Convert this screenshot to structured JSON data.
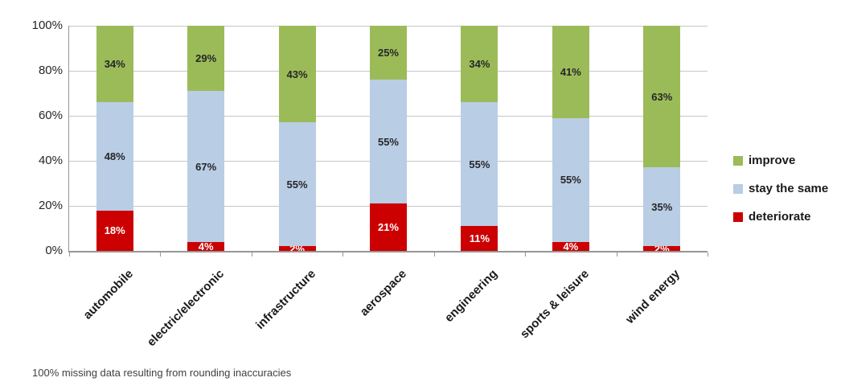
{
  "footnote": "100% missing data resulting from rounding inaccuracies",
  "chart_data": {
    "type": "bar",
    "subtype": "stacked-100-percent",
    "categories": [
      "automobile",
      "electric/electronic",
      "infrastructure",
      "aerospace",
      "engineering",
      "sports & leisure",
      "wind energy"
    ],
    "series": [
      {
        "name": "deteriorate",
        "color": "#CC0000",
        "label_color": "#ffffff",
        "values": [
          18,
          4,
          2,
          21,
          11,
          4,
          2
        ]
      },
      {
        "name": "stay the same",
        "color": "#B9CDE5",
        "label_color": "#262626",
        "values": [
          48,
          67,
          55,
          55,
          55,
          55,
          35
        ]
      },
      {
        "name": "improve",
        "color": "#9BBB59",
        "label_color": "#262626",
        "values": [
          34,
          29,
          43,
          25,
          34,
          41,
          63
        ]
      }
    ],
    "stack_order_bottom_to_top": [
      "deteriorate",
      "stay the same",
      "improve"
    ],
    "legend": [
      "improve",
      "stay the same",
      "deteriorate"
    ],
    "legend_position": "right",
    "y_ticks": [
      "0%",
      "20%",
      "40%",
      "60%",
      "80%",
      "100%"
    ],
    "ylim": [
      0,
      100
    ],
    "grid": true,
    "value_suffix": "%",
    "title": "",
    "xlabel": "",
    "ylabel": ""
  }
}
